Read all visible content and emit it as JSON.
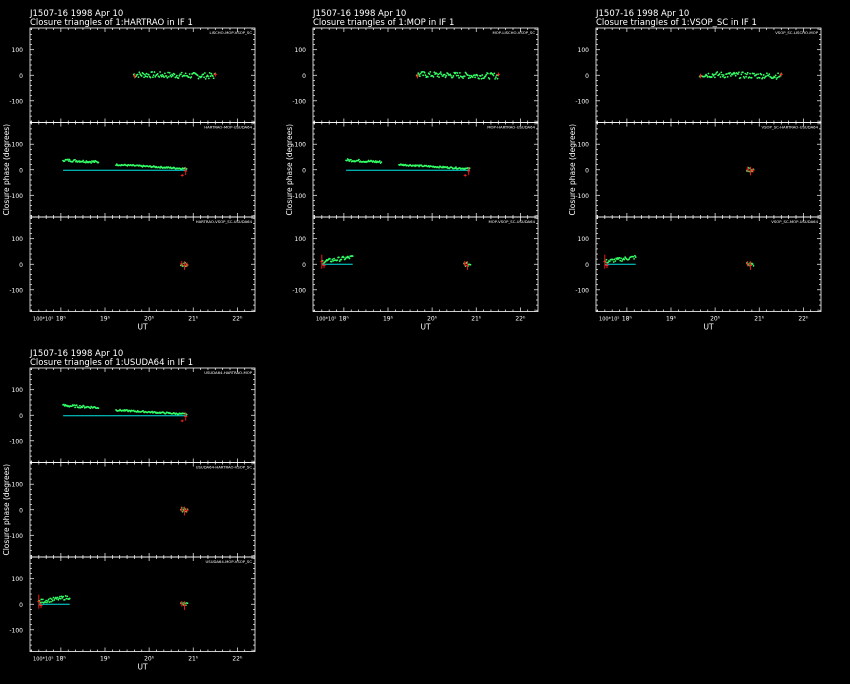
{
  "colors": {
    "background": "#000000",
    "axes": "#ffffff",
    "model": "#00e5e5",
    "closure_phase": "#33ff66",
    "error": "#ff2020"
  },
  "chart_data": [
    {
      "type": "scatter",
      "title_line1": "J1507-16   1998 Apr 10",
      "title_line2": "Closure triangles of 1:HARTRAO in IF 1",
      "xlabel": "UT",
      "ylabel": "Closure phase   (degrees)",
      "xlim": [
        17.3,
        22.4
      ],
      "x_tick_labels": [
        "18ʰ",
        "19ʰ",
        "20ʰ",
        "21ʰ",
        "22ʰ"
      ],
      "y_tick_labels": [
        "100",
        "0",
        "-100"
      ],
      "panels": [
        {
          "label": "LISCHO-MOP-VSOP_SC",
          "ylim": [
            -185,
            185
          ],
          "segments": [
            {
              "x0": 19.65,
              "x1": 21.5,
              "y0": 3,
              "y1": -3,
              "type": "noisy",
              "noise": 12
            }
          ],
          "model": [],
          "error": [
            {
              "x": 19.67,
              "y": -3,
              "h": 18
            },
            {
              "x": 21.5,
              "y": 3,
              "h": 16
            }
          ]
        },
        {
          "label": "HARTRAO-MOP-USUDA64",
          "ylim": [
            -185,
            185
          ],
          "segments": [
            {
              "x0": 18.05,
              "x1": 18.85,
              "y0": 38,
              "y1": 30,
              "type": "noisy",
              "noise": 5
            },
            {
              "x0": 19.25,
              "x1": 20.85,
              "y0": 20,
              "y1": 4,
              "type": "noisy",
              "noise": 3
            }
          ],
          "model": [
            {
              "x0": 18.05,
              "x1": 20.85,
              "y0": -2,
              "y1": -2
            }
          ],
          "error": [
            {
              "x": 20.83,
              "y": -5,
              "h": 32
            },
            {
              "x": 20.75,
              "y": -22,
              "h": 10
            }
          ]
        },
        {
          "label": "HARTRAO-VSOP_SC-USUDA64",
          "ylim": [
            -185,
            185
          ],
          "segments": [
            {
              "x0": 20.72,
              "x1": 20.87,
              "y0": 0,
              "y1": 0,
              "type": "noisy",
              "noise": 8
            }
          ],
          "model": [],
          "error": [
            {
              "x": 20.74,
              "y": 2,
              "h": 22
            },
            {
              "x": 20.8,
              "y": -5,
              "h": 34
            },
            {
              "x": 20.86,
              "y": -2,
              "h": 18
            }
          ]
        }
      ]
    },
    {
      "type": "scatter",
      "title_line1": "J1507-16   1998 Apr 10",
      "title_line2": "Closure triangles of 1:MOP in IF 1",
      "xlabel": "UT",
      "ylabel": "Closure phase   (degrees)",
      "xlim": [
        17.3,
        22.4
      ],
      "x_tick_labels": [
        "18ʰ",
        "19ʰ",
        "20ʰ",
        "21ʰ",
        "22ʰ"
      ],
      "y_tick_labels": [
        "100",
        "0",
        "-100"
      ],
      "panels": [
        {
          "label": "MOP-LISCHO-VSOP_SC",
          "ylim": [
            -185,
            185
          ],
          "segments": [
            {
              "x0": 19.65,
              "x1": 21.5,
              "y0": 3,
              "y1": -3,
              "type": "noisy",
              "noise": 12
            }
          ],
          "model": [],
          "error": [
            {
              "x": 19.67,
              "y": -3,
              "h": 18
            },
            {
              "x": 21.5,
              "y": 3,
              "h": 16
            }
          ]
        },
        {
          "label": "MOP-HARTRAO-USUDA64",
          "ylim": [
            -185,
            185
          ],
          "segments": [
            {
              "x0": 18.05,
              "x1": 18.85,
              "y0": 38,
              "y1": 30,
              "type": "noisy",
              "noise": 5
            },
            {
              "x0": 19.25,
              "x1": 20.85,
              "y0": 20,
              "y1": 4,
              "type": "noisy",
              "noise": 3
            }
          ],
          "model": [
            {
              "x0": 18.05,
              "x1": 20.85,
              "y0": -2,
              "y1": -2
            }
          ],
          "error": [
            {
              "x": 20.83,
              "y": -5,
              "h": 32
            },
            {
              "x": 20.75,
              "y": -22,
              "h": 10
            }
          ]
        },
        {
          "label": "MOP-VSOP_SC-USUDA64",
          "ylim": [
            -185,
            185
          ],
          "segments": [
            {
              "x0": 17.5,
              "x1": 18.2,
              "y0": 10,
              "y1": 28,
              "type": "noisy",
              "noise": 8
            },
            {
              "x0": 20.72,
              "x1": 20.87,
              "y0": 0,
              "y1": 0,
              "type": "noisy",
              "noise": 8
            }
          ],
          "model": [
            {
              "x0": 17.5,
              "x1": 18.2,
              "y0": 0,
              "y1": 0
            }
          ],
          "error": [
            {
              "x": 17.5,
              "y": 10,
              "h": 55
            },
            {
              "x": 17.55,
              "y": -5,
              "h": 20
            },
            {
              "x": 20.8,
              "y": -5,
              "h": 34
            },
            {
              "x": 20.74,
              "y": 2,
              "h": 22
            }
          ]
        }
      ]
    },
    {
      "type": "scatter",
      "title_line1": "J1507-16   1998 Apr 10",
      "title_line2": "Closure triangles of 1:VSOP_SC in IF 1",
      "xlabel": "UT",
      "ylabel": "Closure phase   (degrees)",
      "xlim": [
        17.3,
        22.4
      ],
      "x_tick_labels": [
        "18ʰ",
        "19ʰ",
        "20ʰ",
        "21ʰ",
        "22ʰ"
      ],
      "y_tick_labels": [
        "100",
        "0",
        "-100"
      ],
      "panels": [
        {
          "label": "VSOP_SC-LISCHO-MOP",
          "ylim": [
            -185,
            185
          ],
          "segments": [
            {
              "x0": 19.65,
              "x1": 21.5,
              "y0": 3,
              "y1": -3,
              "type": "noisy",
              "noise": 12
            }
          ],
          "model": [],
          "error": [
            {
              "x": 19.67,
              "y": -3,
              "h": 18
            },
            {
              "x": 21.5,
              "y": 3,
              "h": 16
            }
          ]
        },
        {
          "label": "VSOP_SC-HARTRAO-USUDA64",
          "ylim": [
            -185,
            185
          ],
          "segments": [
            {
              "x0": 20.72,
              "x1": 20.87,
              "y0": 0,
              "y1": 0,
              "type": "noisy",
              "noise": 8
            }
          ],
          "model": [],
          "error": [
            {
              "x": 20.74,
              "y": 2,
              "h": 22
            },
            {
              "x": 20.8,
              "y": -5,
              "h": 34
            },
            {
              "x": 20.86,
              "y": -2,
              "h": 18
            }
          ]
        },
        {
          "label": "VSOP_SC-MOP-USUDA64",
          "ylim": [
            -185,
            185
          ],
          "segments": [
            {
              "x0": 17.5,
              "x1": 18.2,
              "y0": 10,
              "y1": 28,
              "type": "noisy",
              "noise": 8
            },
            {
              "x0": 20.72,
              "x1": 20.87,
              "y0": 0,
              "y1": 0,
              "type": "noisy",
              "noise": 8
            }
          ],
          "model": [
            {
              "x0": 17.5,
              "x1": 18.2,
              "y0": 0,
              "y1": 0
            }
          ],
          "error": [
            {
              "x": 17.5,
              "y": 10,
              "h": 55
            },
            {
              "x": 17.55,
              "y": -5,
              "h": 20
            },
            {
              "x": 20.8,
              "y": -5,
              "h": 34
            },
            {
              "x": 20.74,
              "y": 2,
              "h": 22
            }
          ]
        }
      ]
    },
    {
      "type": "scatter",
      "title_line1": "J1507-16   1998 Apr 10",
      "title_line2": "Closure triangles of 1:USUDA64 in IF 1",
      "xlabel": "UT",
      "ylabel": "Closure phase   (degrees)",
      "xlim": [
        17.3,
        22.4
      ],
      "x_tick_labels": [
        "18ʰ",
        "19ʰ",
        "20ʰ",
        "21ʰ",
        "22ʰ"
      ],
      "y_tick_labels": [
        "100",
        "0",
        "-100"
      ],
      "panels": [
        {
          "label": "USUDA64-HARTRAO-MOP",
          "ylim": [
            -185,
            185
          ],
          "segments": [
            {
              "x0": 18.05,
              "x1": 18.85,
              "y0": 38,
              "y1": 30,
              "type": "noisy",
              "noise": 5
            },
            {
              "x0": 19.25,
              "x1": 20.85,
              "y0": 20,
              "y1": 4,
              "type": "noisy",
              "noise": 3
            }
          ],
          "model": [
            {
              "x0": 18.05,
              "x1": 20.85,
              "y0": -2,
              "y1": -2
            }
          ],
          "error": [
            {
              "x": 20.83,
              "y": -5,
              "h": 32
            },
            {
              "x": 20.75,
              "y": -22,
              "h": 10
            }
          ]
        },
        {
          "label": "USUDA64-HARTRAO-VSOP_SC",
          "ylim": [
            -185,
            185
          ],
          "segments": [
            {
              "x0": 20.72,
              "x1": 20.87,
              "y0": 0,
              "y1": 0,
              "type": "noisy",
              "noise": 8
            }
          ],
          "model": [],
          "error": [
            {
              "x": 20.74,
              "y": 2,
              "h": 22
            },
            {
              "x": 20.8,
              "y": -5,
              "h": 34
            },
            {
              "x": 20.86,
              "y": -2,
              "h": 18
            }
          ]
        },
        {
          "label": "USUDA64-MOP-VSOP_SC",
          "ylim": [
            -185,
            185
          ],
          "segments": [
            {
              "x0": 17.5,
              "x1": 18.2,
              "y0": 10,
              "y1": 28,
              "type": "noisy",
              "noise": 8
            },
            {
              "x0": 20.72,
              "x1": 20.87,
              "y0": 0,
              "y1": 0,
              "type": "noisy",
              "noise": 8
            }
          ],
          "model": [
            {
              "x0": 17.5,
              "x1": 18.2,
              "y0": 0,
              "y1": 0
            }
          ],
          "error": [
            {
              "x": 17.5,
              "y": 10,
              "h": 55
            },
            {
              "x": 17.55,
              "y": -5,
              "h": 20
            },
            {
              "x": 20.8,
              "y": -5,
              "h": 34
            },
            {
              "x": 20.74,
              "y": 2,
              "h": 22
            }
          ]
        }
      ]
    }
  ]
}
